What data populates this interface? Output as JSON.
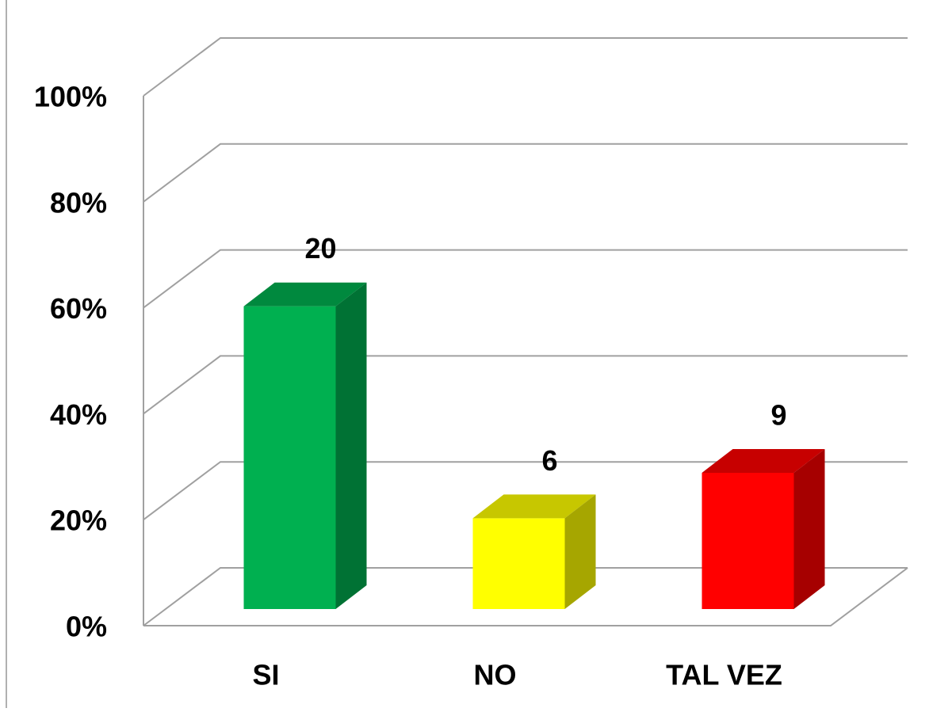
{
  "chart_data": {
    "type": "bar3d",
    "categories": [
      "SI",
      "NO",
      "TAL VEZ"
    ],
    "values": [
      57.14,
      17.14,
      25.71
    ],
    "value_labels": [
      "20",
      "6",
      "9"
    ],
    "colors": [
      "#00b050",
      "#ffff00",
      "#ff0000"
    ],
    "ylim": [
      0,
      100
    ],
    "yticks": [
      {
        "value": 0,
        "label": "0%"
      },
      {
        "value": 20,
        "label": "20%"
      },
      {
        "value": 40,
        "label": "40%"
      },
      {
        "value": 60,
        "label": "60%"
      },
      {
        "value": 80,
        "label": "80%"
      },
      {
        "value": 100,
        "label": "100%"
      }
    ],
    "grid": true
  }
}
